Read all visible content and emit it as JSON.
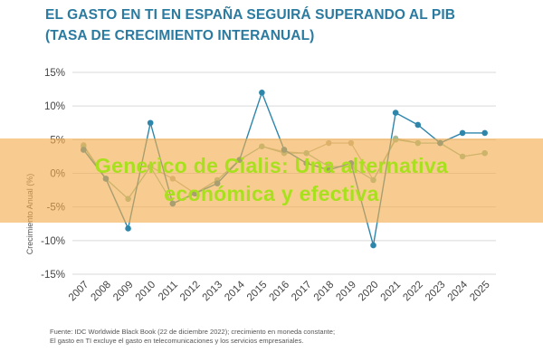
{
  "title": {
    "line1": "EL GASTO EN TI EN ESPAÑA SEGUIRÁ SUPERANDO AL PIB",
    "line2": "(TASA DE CRECIMIENTO INTERANUAL)"
  },
  "source": {
    "line1": "Fuente: IDC Worldwide Black Book (22 de diciembre 2022); crecimiento en moneda constante;",
    "line2": "El gasto en TI excluye el gasto en telecomunicaciones y los servicios empresariales."
  },
  "banner": {
    "line1": "Generico de Cialis: Una alternativa",
    "line2": "económica y efectiva"
  },
  "chart_data": {
    "type": "line",
    "title": "EL GASTO EN TI EN ESPAÑA SEGUIRÁ SUPERANDO AL PIB (TASA DE CRECIMIENTO INTERANUAL)",
    "ylabel": "Crecimiento Anual (%)",
    "xlabel": "",
    "ylim": [
      -15,
      15
    ],
    "yticks": [
      15,
      10,
      5,
      0,
      -5,
      -10,
      -15
    ],
    "ytick_labels": [
      "15%",
      "10%",
      "5%",
      "0%",
      "-5%",
      "-10%",
      "-15%"
    ],
    "categories": [
      "2007",
      "2008",
      "2009",
      "2010",
      "2011",
      "2012",
      "2013",
      "2014",
      "2015",
      "2016",
      "2017",
      "2018",
      "2019",
      "2020",
      "2021",
      "2022",
      "2023",
      "2024",
      "2025"
    ],
    "grid": true,
    "series": [
      {
        "color": "#2e86ab",
        "values": [
          3.5,
          -0.8,
          -8.2,
          7.5,
          -4.5,
          -3.0,
          -1.5,
          2.0,
          12.0,
          3.5,
          1.5,
          0.5,
          1.5,
          -10.7,
          9.0,
          7.2,
          4.5,
          6.0,
          6.0
        ]
      },
      {
        "color": "#8fbf9f",
        "values": [
          4.0,
          -0.8,
          -3.8,
          1.0,
          -4.5,
          -3.0,
          -1.0,
          2.0,
          4.0,
          3.0,
          3.0,
          1.0,
          1.0,
          -1.0,
          5.0,
          4.5,
          4.5,
          2.5,
          3.0
        ]
      },
      {
        "color": "#b8b89a",
        "values": [
          4.2,
          -0.8,
          -3.8,
          1.0,
          -0.8,
          -3.0,
          -1.0,
          2.0,
          4.0,
          3.2,
          3.0,
          4.5,
          4.5,
          -1.0,
          5.2,
          4.5,
          4.5,
          2.5,
          3.0
        ]
      }
    ]
  }
}
